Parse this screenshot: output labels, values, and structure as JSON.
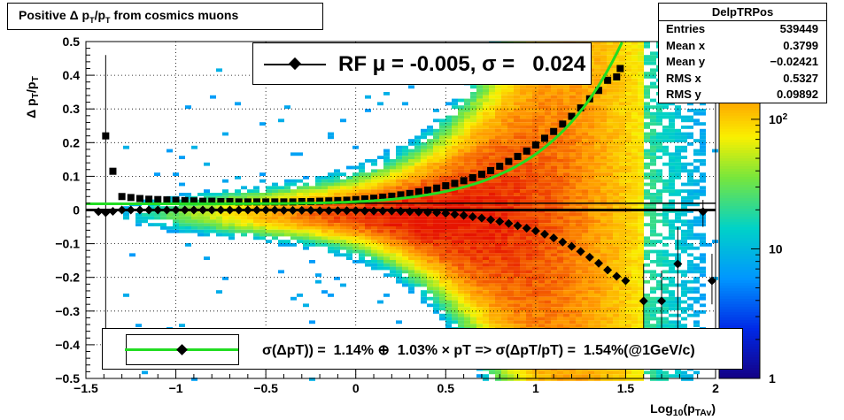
{
  "chart_data": {
    "type": "heatmap",
    "title": "Positive Δ p_{T}/p_{T} from cosmics muons",
    "xlabel": "Log_{10}(p_{TAv})",
    "ylabel": "Δ p_{T}/p_{T}",
    "xlim": [
      -1.5,
      2.0
    ],
    "ylim": [
      -0.5,
      0.5
    ],
    "x_ticks": [
      "−1.5",
      "−1",
      "−0.5",
      "0",
      "0.5",
      "1",
      "1.5",
      "2"
    ],
    "y_ticks": [
      "−0.5",
      "−0.4",
      "−0.3",
      "−0.2",
      "−0.1",
      "0",
      "0.1",
      "0.2",
      "0.3",
      "0.4",
      "0.5"
    ],
    "z_scale": "log",
    "z_ticks": [
      "1",
      "10",
      "10^2"
    ],
    "grid": true,
    "stats": {
      "name": "DelpTRPos",
      "rows": [
        {
          "label": "Entries",
          "value": "539449"
        },
        {
          "label": "Mean x",
          "value": "0.3799"
        },
        {
          "label": "Mean y",
          "value": "−0.02421"
        },
        {
          "label": "RMS x",
          "value": "0.5327"
        },
        {
          "label": "RMS y",
          "value": "0.09892"
        }
      ]
    },
    "legend_rf": "RF μ = -0.005, σ =   0.024",
    "legend_fit": "σ(ΔpT)) =  1.14% ⊕  1.03% × pT => σ(ΔpT/pT) =  1.54%(@1GeV/c)",
    "mean_points": [
      {
        "x": -1.43,
        "y": -0.005
      },
      {
        "x": -1.39,
        "y": -0.008
      },
      {
        "x": -1.35,
        "y": -0.004
      },
      {
        "x": -1.3,
        "y": 0.0
      },
      {
        "x": -1.25,
        "y": 0.0
      },
      {
        "x": -1.2,
        "y": 0.0
      },
      {
        "x": -1.15,
        "y": 0.0
      },
      {
        "x": -1.1,
        "y": 0.0
      },
      {
        "x": -1.05,
        "y": 0.0
      },
      {
        "x": -1.0,
        "y": 0.0
      },
      {
        "x": -0.95,
        "y": 0.0
      },
      {
        "x": -0.9,
        "y": 0.0
      },
      {
        "x": -0.85,
        "y": 0.0
      },
      {
        "x": -0.8,
        "y": 0.0
      },
      {
        "x": -0.75,
        "y": 0.0
      },
      {
        "x": -0.7,
        "y": 0.0
      },
      {
        "x": -0.65,
        "y": 0.0
      },
      {
        "x": -0.6,
        "y": 0.0
      },
      {
        "x": -0.55,
        "y": 0.0
      },
      {
        "x": -0.5,
        "y": 0.0
      },
      {
        "x": -0.45,
        "y": 0.0
      },
      {
        "x": -0.4,
        "y": -0.001
      },
      {
        "x": -0.35,
        "y": -0.001
      },
      {
        "x": -0.3,
        "y": -0.001
      },
      {
        "x": -0.25,
        "y": -0.001
      },
      {
        "x": -0.2,
        "y": -0.002
      },
      {
        "x": -0.15,
        "y": -0.002
      },
      {
        "x": -0.1,
        "y": -0.002
      },
      {
        "x": -0.05,
        "y": -0.002
      },
      {
        "x": 0.0,
        "y": -0.002
      },
      {
        "x": 0.05,
        "y": -0.003
      },
      {
        "x": 0.1,
        "y": -0.003
      },
      {
        "x": 0.15,
        "y": -0.003
      },
      {
        "x": 0.2,
        "y": -0.003
      },
      {
        "x": 0.25,
        "y": -0.004
      },
      {
        "x": 0.3,
        "y": -0.005
      },
      {
        "x": 0.35,
        "y": -0.006
      },
      {
        "x": 0.4,
        "y": -0.007
      },
      {
        "x": 0.45,
        "y": -0.008
      },
      {
        "x": 0.5,
        "y": -0.01
      },
      {
        "x": 0.55,
        "y": -0.013
      },
      {
        "x": 0.6,
        "y": -0.016
      },
      {
        "x": 0.65,
        "y": -0.02
      },
      {
        "x": 0.7,
        "y": -0.024
      },
      {
        "x": 0.75,
        "y": -0.029
      },
      {
        "x": 0.8,
        "y": -0.034
      },
      {
        "x": 0.85,
        "y": -0.04
      },
      {
        "x": 0.9,
        "y": -0.047
      },
      {
        "x": 0.95,
        "y": -0.054
      },
      {
        "x": 1.0,
        "y": -0.062
      },
      {
        "x": 1.05,
        "y": -0.072
      },
      {
        "x": 1.1,
        "y": -0.083
      },
      {
        "x": 1.15,
        "y": -0.095
      },
      {
        "x": 1.2,
        "y": -0.108
      },
      {
        "x": 1.25,
        "y": -0.123
      },
      {
        "x": 1.3,
        "y": -0.14
      },
      {
        "x": 1.35,
        "y": -0.158
      },
      {
        "x": 1.4,
        "y": -0.178
      },
      {
        "x": 1.45,
        "y": -0.197
      },
      {
        "x": 1.5,
        "y": -0.21
      },
      {
        "x": 1.6,
        "y": -0.27
      },
      {
        "x": 1.7,
        "y": -0.27
      },
      {
        "x": 1.79,
        "y": -0.16
      },
      {
        "x": 1.93,
        "y": -0.005
      },
      {
        "x": 1.98,
        "y": -0.21
      }
    ],
    "rms_points": [
      {
        "x": -1.39,
        "y": 0.22
      },
      {
        "x": -1.35,
        "y": 0.115
      },
      {
        "x": -1.3,
        "y": 0.04
      },
      {
        "x": -1.25,
        "y": 0.037
      },
      {
        "x": -1.2,
        "y": 0.034
      },
      {
        "x": -1.15,
        "y": 0.032
      },
      {
        "x": -1.1,
        "y": 0.031
      },
      {
        "x": -1.05,
        "y": 0.03
      },
      {
        "x": -1.0,
        "y": 0.029
      },
      {
        "x": -0.95,
        "y": 0.028
      },
      {
        "x": -0.9,
        "y": 0.027
      },
      {
        "x": -0.85,
        "y": 0.026
      },
      {
        "x": -0.8,
        "y": 0.026
      },
      {
        "x": -0.75,
        "y": 0.025
      },
      {
        "x": -0.7,
        "y": 0.025
      },
      {
        "x": -0.65,
        "y": 0.024
      },
      {
        "x": -0.6,
        "y": 0.024
      },
      {
        "x": -0.55,
        "y": 0.024
      },
      {
        "x": -0.5,
        "y": 0.024
      },
      {
        "x": -0.45,
        "y": 0.024
      },
      {
        "x": -0.4,
        "y": 0.024
      },
      {
        "x": -0.35,
        "y": 0.024
      },
      {
        "x": -0.3,
        "y": 0.025
      },
      {
        "x": -0.25,
        "y": 0.025
      },
      {
        "x": -0.2,
        "y": 0.026
      },
      {
        "x": -0.15,
        "y": 0.027
      },
      {
        "x": -0.1,
        "y": 0.028
      },
      {
        "x": -0.05,
        "y": 0.029
      },
      {
        "x": 0.0,
        "y": 0.031
      },
      {
        "x": 0.05,
        "y": 0.033
      },
      {
        "x": 0.1,
        "y": 0.035
      },
      {
        "x": 0.15,
        "y": 0.038
      },
      {
        "x": 0.2,
        "y": 0.041
      },
      {
        "x": 0.25,
        "y": 0.045
      },
      {
        "x": 0.3,
        "y": 0.049
      },
      {
        "x": 0.35,
        "y": 0.054
      },
      {
        "x": 0.4,
        "y": 0.059
      },
      {
        "x": 0.45,
        "y": 0.065
      },
      {
        "x": 0.5,
        "y": 0.072
      },
      {
        "x": 0.55,
        "y": 0.079
      },
      {
        "x": 0.6,
        "y": 0.087
      },
      {
        "x": 0.65,
        "y": 0.096
      },
      {
        "x": 0.7,
        "y": 0.106
      },
      {
        "x": 0.75,
        "y": 0.117
      },
      {
        "x": 0.8,
        "y": 0.13
      },
      {
        "x": 0.85,
        "y": 0.144
      },
      {
        "x": 0.9,
        "y": 0.159
      },
      {
        "x": 0.95,
        "y": 0.175
      },
      {
        "x": 1.0,
        "y": 0.193
      },
      {
        "x": 1.05,
        "y": 0.213
      },
      {
        "x": 1.1,
        "y": 0.233
      },
      {
        "x": 1.15,
        "y": 0.255
      },
      {
        "x": 1.2,
        "y": 0.278
      },
      {
        "x": 1.25,
        "y": 0.303
      },
      {
        "x": 1.3,
        "y": 0.33
      },
      {
        "x": 1.35,
        "y": 0.355
      },
      {
        "x": 1.4,
        "y": 0.385
      },
      {
        "x": 1.45,
        "y": 0.395
      },
      {
        "x": 1.47,
        "y": 0.42
      }
    ],
    "fit_curve": {
      "model": "sqrt(a^2 + (b*pT)^2)",
      "a": 0.0114,
      "b": 0.0103
    }
  }
}
